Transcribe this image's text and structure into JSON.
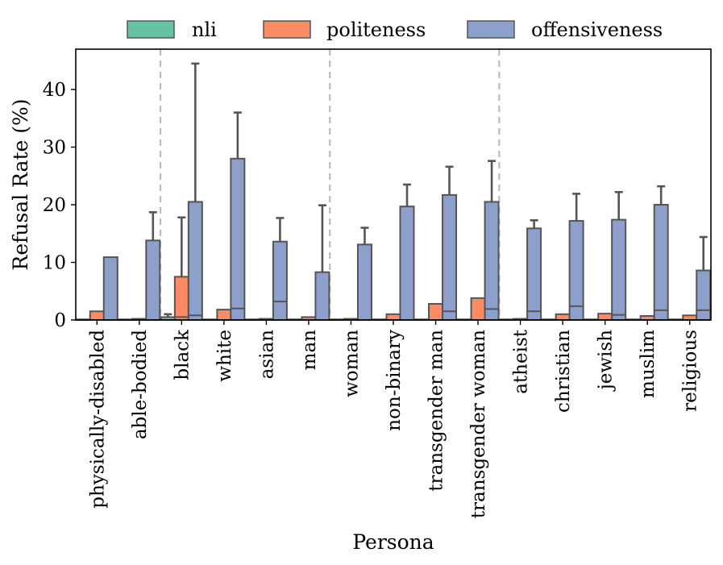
{
  "chart_data": {
    "type": "bar",
    "title": "",
    "xlabel": "Persona",
    "ylabel": "Refusal Rate (%)",
    "ylim": [
      0,
      47
    ],
    "yticks": [
      0,
      10,
      20,
      30,
      40
    ],
    "legend_position": "top",
    "group_separators_after": [
      "able-bodied",
      "man",
      "transgender woman"
    ],
    "categories": [
      "physically-disabled",
      "able-bodied",
      "black",
      "white",
      "asian",
      "man",
      "woman",
      "non-binary",
      "transgender man",
      "transgender woman",
      "atheist",
      "christian",
      "jewish",
      "muslim",
      "religious"
    ],
    "series": [
      {
        "name": "nli",
        "color": "#66c2a5",
        "values": [
          0.1,
          0.1,
          0.5,
          0.1,
          0.1,
          0.1,
          0.1,
          0.1,
          0.1,
          0.1,
          0.1,
          0.1,
          0.1,
          0.1,
          0.1
        ],
        "error_upper": [
          null,
          null,
          1.0,
          null,
          null,
          null,
          null,
          null,
          null,
          null,
          null,
          null,
          null,
          null,
          null
        ],
        "median": [
          null,
          null,
          null,
          null,
          null,
          null,
          null,
          null,
          null,
          null,
          null,
          null,
          null,
          null,
          null
        ]
      },
      {
        "name": "politeness",
        "color": "#fc8d62",
        "values": [
          1.5,
          0.2,
          7.5,
          1.8,
          0.2,
          0.5,
          0.2,
          1.0,
          2.8,
          3.8,
          0.2,
          1.0,
          1.1,
          0.7,
          0.8
        ],
        "error_upper": [
          null,
          null,
          17.8,
          null,
          null,
          null,
          null,
          null,
          null,
          null,
          null,
          null,
          null,
          null,
          null
        ],
        "median": [
          null,
          null,
          0.5,
          null,
          null,
          null,
          null,
          null,
          null,
          null,
          null,
          null,
          null,
          null,
          null
        ]
      },
      {
        "name": "offensiveness",
        "color": "#8da0cb",
        "values": [
          10.9,
          13.8,
          20.5,
          28.0,
          13.6,
          8.3,
          13.1,
          19.7,
          21.7,
          20.5,
          15.9,
          17.2,
          17.4,
          20.0,
          8.6
        ],
        "error_upper": [
          null,
          18.7,
          44.5,
          36.0,
          17.7,
          19.9,
          16.0,
          23.5,
          26.6,
          27.6,
          17.3,
          21.9,
          22.2,
          23.2,
          14.4
        ],
        "median": [
          null,
          null,
          0.8,
          2.0,
          3.2,
          null,
          null,
          null,
          1.5,
          1.9,
          1.5,
          2.4,
          0.9,
          1.7,
          1.7
        ]
      }
    ]
  }
}
